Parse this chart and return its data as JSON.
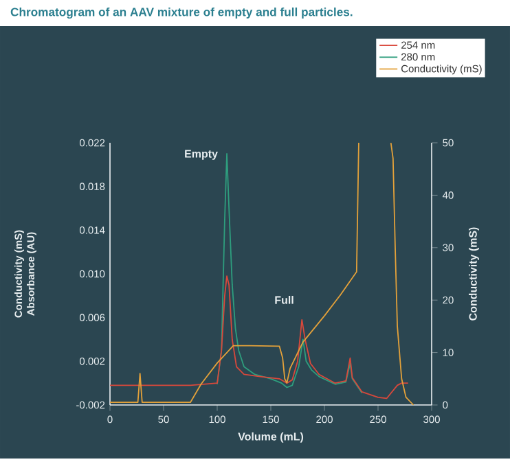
{
  "chart_data": {
    "type": "line",
    "title": "Chromatogram of an AAV mixture of empty and full particles.",
    "xlabel": "Volume (mL)",
    "ylabel": "Absorbance (AU)",
    "y2label": "Conductivity (mS)",
    "annotations": [
      "Conductivity (mS)",
      {
        "text": "Empty",
        "x": 109,
        "y": 0.021
      },
      {
        "text": "Full",
        "x": 180,
        "y": 0.0058
      }
    ],
    "xlim": [
      0,
      300
    ],
    "xticks": [
      0,
      50,
      100,
      150,
      200,
      250,
      300
    ],
    "ylim": [
      -0.002,
      0.022
    ],
    "yticks": [
      -0.002,
      0.002,
      0.006,
      {
        "value": 0.01,
        "label": "0.010"
      },
      0.014,
      0.018,
      0.022
    ],
    "y2lim": [
      0,
      50
    ],
    "y2ticks": [
      0,
      10,
      20,
      30,
      40,
      50
    ],
    "legend": "top right",
    "grid": false,
    "series": [
      {
        "name": "254 nm",
        "color": "#d9483b",
        "x": [
          0,
          75,
          100,
          104,
          107,
          109,
          111,
          114,
          118,
          125,
          140,
          158,
          165,
          170,
          175,
          179,
          182,
          187,
          195,
          210,
          220,
          224,
          226,
          235,
          250,
          258,
          263,
          268,
          272,
          278
        ],
        "values": [
          -0.0002,
          -0.0002,
          0.0,
          0.003,
          0.008,
          0.0098,
          0.009,
          0.004,
          0.0015,
          0.0008,
          0.0006,
          0.0004,
          0.0,
          0.0003,
          0.002,
          0.0058,
          0.004,
          0.0018,
          0.0008,
          0.0,
          0.0002,
          0.0023,
          0.0005,
          -0.0008,
          -0.0013,
          -0.0014,
          -0.0008,
          -0.0002,
          0.0,
          0.0
        ]
      },
      {
        "name": "280 nm",
        "color": "#2e9e7e",
        "x": [
          100,
          104,
          107,
          109,
          111,
          114,
          117,
          120,
          125,
          135,
          150,
          160,
          165,
          170,
          176,
          180,
          183,
          188,
          195,
          210,
          220,
          224,
          226,
          235
        ],
        "values": [
          -0.0001,
          0.003,
          0.015,
          0.021,
          0.016,
          0.009,
          0.005,
          0.003,
          0.0015,
          0.0008,
          0.0004,
          0.0,
          -0.0004,
          -0.0002,
          0.0015,
          0.004,
          0.002,
          0.0012,
          0.0006,
          -0.0001,
          0.0001,
          0.0018,
          0.0004,
          -0.0009
        ]
      },
      {
        "name": "Conductivity (mS)",
        "color": "#e3a13a",
        "axis": "y2",
        "x": [
          0,
          26,
          28,
          30,
          32,
          75,
          85,
          100,
          115,
          130,
          158,
          161,
          163,
          165,
          168,
          180,
          200,
          215,
          230,
          232,
          233,
          262,
          264,
          266,
          268,
          272,
          276,
          283
        ],
        "values": [
          0.5,
          0.5,
          6,
          0.5,
          0.5,
          0.5,
          4,
          8,
          11.3,
          11.3,
          11.2,
          9,
          5,
          4.2,
          7,
          12,
          17,
          21,
          25.4,
          50,
          null,
          50,
          47,
          30,
          15,
          5,
          1.5,
          0
        ]
      }
    ]
  }
}
